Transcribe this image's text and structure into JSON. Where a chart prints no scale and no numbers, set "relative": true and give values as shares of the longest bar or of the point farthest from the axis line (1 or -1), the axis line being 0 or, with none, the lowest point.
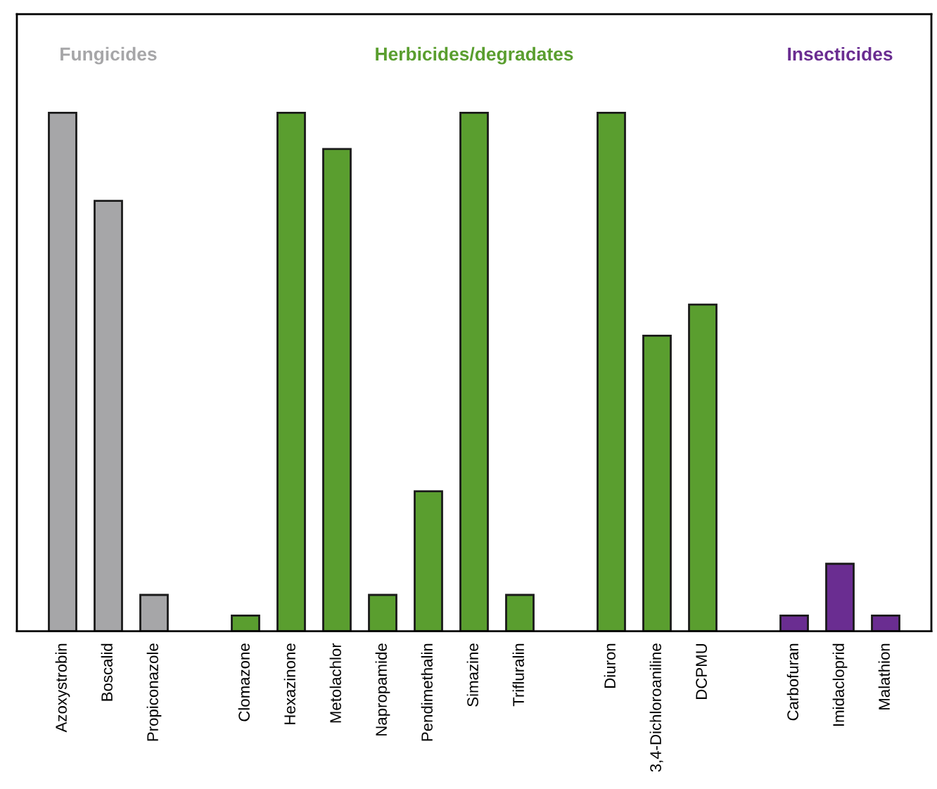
{
  "chart_data": {
    "type": "bar",
    "relative": true,
    "categories": [
      "Azoxystrobin",
      "Boscalid",
      "Propiconazole",
      null,
      "Clomazone",
      "Hexazinone",
      "Metolachlor",
      "Napropamide",
      "Pendimethalin",
      "Simazine",
      "Trifluralin",
      null,
      "Diuron",
      "3,4-Dichloroaniline",
      "DCPMU",
      null,
      "Carbofuran",
      "Imidacloprid",
      "Malathion"
    ],
    "values": [
      1.0,
      0.83,
      0.07,
      null,
      0.03,
      1.0,
      0.93,
      0.07,
      0.27,
      1.0,
      0.07,
      null,
      1.0,
      0.57,
      0.63,
      null,
      0.03,
      0.13,
      0.03
    ],
    "colors": [
      "#a6a6a8",
      "#a6a6a8",
      "#a6a6a8",
      null,
      "#5a9e2f",
      "#5a9e2f",
      "#5a9e2f",
      "#5a9e2f",
      "#5a9e2f",
      "#5a9e2f",
      "#5a9e2f",
      null,
      "#5a9e2f",
      "#5a9e2f",
      "#5a9e2f",
      null,
      "#6a2d91",
      "#6a2d91",
      "#6a2d91"
    ],
    "annotations": [
      "Fungicides",
      "Herbicides/degradates",
      "Insecticides"
    ],
    "grid": false
  }
}
